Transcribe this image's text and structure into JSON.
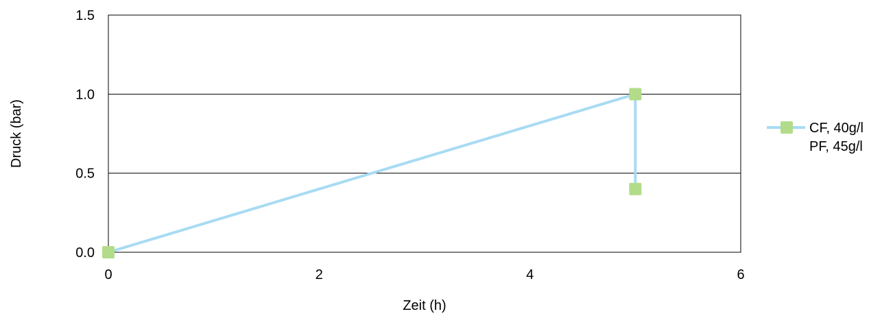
{
  "chart_data": {
    "type": "line",
    "xlabel": "Zeit (h)",
    "ylabel": "Druck (bar)",
    "xlim": [
      0,
      6
    ],
    "ylim": [
      0,
      1.5
    ],
    "x_ticks": [
      "0",
      "2",
      "4",
      "6"
    ],
    "y_ticks": [
      "0.0",
      "0.5",
      "1.0",
      "1.5"
    ],
    "grid": "horizontal",
    "legend_position": "right",
    "legend_lines": [
      "CF, 40g/l",
      "PF, 45g/l"
    ],
    "series": [
      {
        "name": "CF, 40g/l PF, 45g/l",
        "line_color": "#a8dbf3",
        "marker_color": "#b3dc8a",
        "marker": "square",
        "points": [
          {
            "x": 0,
            "y": 0.0
          },
          {
            "x": 5,
            "y": 1.0
          },
          {
            "x": 5,
            "y": 0.4
          }
        ]
      }
    ]
  }
}
